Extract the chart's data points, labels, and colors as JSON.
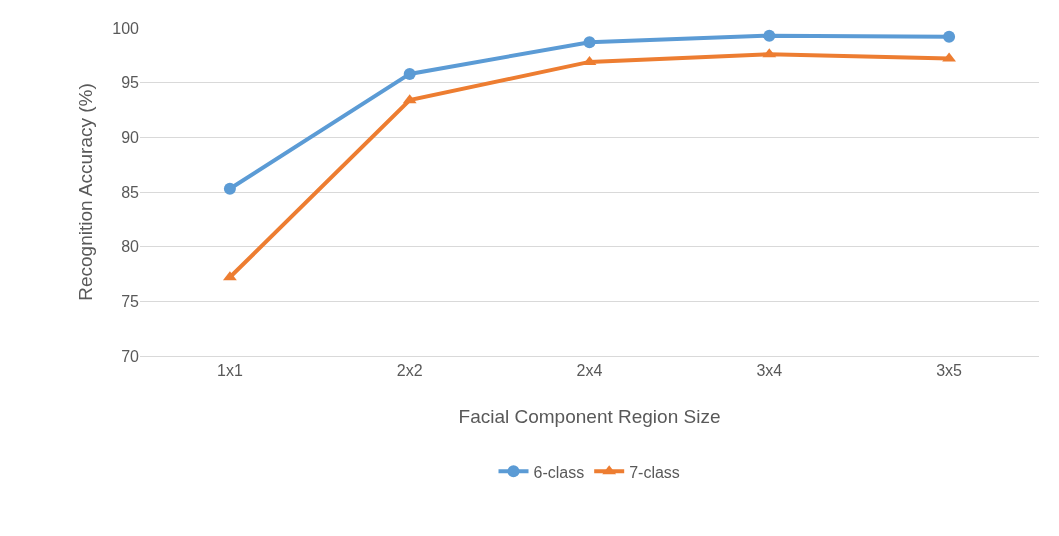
{
  "chart_data": {
    "type": "line",
    "xlabel": "Facial Component Region Size",
    "ylabel": "Recognition Accuracy (%)",
    "categories": [
      "1x1",
      "2x2",
      "2x4",
      "3x4",
      "3x5"
    ],
    "series": [
      {
        "name": "6-class",
        "color": "#5b9bd5",
        "marker": "circle",
        "values": [
          85.3,
          95.8,
          98.7,
          99.3,
          99.2
        ]
      },
      {
        "name": "7-class",
        "color": "#ed7d31",
        "marker": "triangle",
        "values": [
          77.2,
          93.4,
          96.9,
          97.6,
          97.2
        ]
      }
    ],
    "ylim": [
      70,
      100
    ],
    "yticks": [
      70,
      75,
      80,
      85,
      90,
      95,
      100
    ],
    "grid": "y",
    "legend": "bottom",
    "line_style": "solid"
  }
}
